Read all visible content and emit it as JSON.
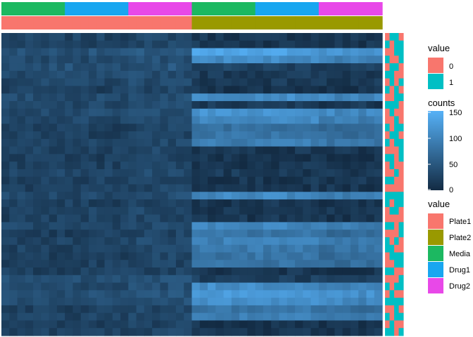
{
  "chart_data": {
    "type": "heatmap",
    "n_rows": 40,
    "n_cols": 48,
    "column_annotations": {
      "treatment": [
        "Media",
        "Media",
        "Media",
        "Media",
        "Media",
        "Media",
        "Media",
        "Media",
        "Drug1",
        "Drug1",
        "Drug1",
        "Drug1",
        "Drug1",
        "Drug1",
        "Drug1",
        "Drug1",
        "Drug2",
        "Drug2",
        "Drug2",
        "Drug2",
        "Drug2",
        "Drug2",
        "Drug2",
        "Drug2",
        "Media",
        "Media",
        "Media",
        "Media",
        "Media",
        "Media",
        "Media",
        "Media",
        "Drug1",
        "Drug1",
        "Drug1",
        "Drug1",
        "Drug1",
        "Drug1",
        "Drug1",
        "Drug1",
        "Drug2",
        "Drug2",
        "Drug2",
        "Drug2",
        "Drug2",
        "Drug2",
        "Drug2",
        "Drug2"
      ],
      "plate": [
        "Plate1",
        "Plate1",
        "Plate1",
        "Plate1",
        "Plate1",
        "Plate1",
        "Plate1",
        "Plate1",
        "Plate1",
        "Plate1",
        "Plate1",
        "Plate1",
        "Plate1",
        "Plate1",
        "Plate1",
        "Plate1",
        "Plate1",
        "Plate1",
        "Plate1",
        "Plate1",
        "Plate1",
        "Plate1",
        "Plate1",
        "Plate1",
        "Plate2",
        "Plate2",
        "Plate2",
        "Plate2",
        "Plate2",
        "Plate2",
        "Plate2",
        "Plate2",
        "Plate2",
        "Plate2",
        "Plate2",
        "Plate2",
        "Plate2",
        "Plate2",
        "Plate2",
        "Plate2",
        "Plate2",
        "Plate2",
        "Plate2",
        "Plate2",
        "Plate2",
        "Plate2",
        "Plate2",
        "Plate2"
      ]
    },
    "row_levels": [
      20,
      20,
      62,
      38,
      58,
      35,
      30,
      8,
      42,
      28,
      45,
      35,
      10,
      15,
      22,
      18,
      8,
      12,
      25,
      15,
      10,
      35,
      10,
      22,
      15,
      30,
      10,
      25,
      18,
      12,
      10,
      12,
      48,
      40,
      55,
      42,
      15,
      22,
      10,
      18
    ],
    "plate2_rows": [
      2,
      3,
      8,
      10,
      11,
      12,
      13,
      14,
      21,
      25,
      26,
      27,
      28,
      29,
      30,
      33,
      34,
      35,
      36,
      37
    ],
    "row_annotation_cells": [
      [
        0,
        1,
        1,
        0
      ],
      [
        1,
        0,
        1,
        1
      ],
      [
        0,
        0,
        1,
        1
      ],
      [
        1,
        0,
        0,
        1
      ],
      [
        0,
        1,
        1,
        0
      ],
      [
        1,
        1,
        0,
        0
      ],
      [
        0,
        1,
        0,
        1
      ],
      [
        1,
        0,
        1,
        0
      ],
      [
        0,
        0,
        1,
        1
      ],
      [
        1,
        1,
        1,
        0
      ],
      [
        0,
        1,
        0,
        0
      ],
      [
        0,
        0,
        1,
        0
      ],
      [
        1,
        0,
        1,
        1
      ],
      [
        0,
        1,
        1,
        0
      ],
      [
        1,
        0,
        1,
        1
      ],
      [
        0,
        0,
        0,
        1
      ],
      [
        1,
        1,
        0,
        1
      ],
      [
        0,
        1,
        0,
        0
      ],
      [
        0,
        0,
        1,
        0
      ],
      [
        1,
        1,
        0,
        0
      ],
      [
        0,
        0,
        0,
        0
      ],
      [
        1,
        1,
        1,
        1
      ],
      [
        1,
        0,
        1,
        1
      ],
      [
        0,
        1,
        1,
        0
      ],
      [
        0,
        0,
        0,
        0
      ],
      [
        1,
        1,
        0,
        1
      ],
      [
        0,
        0,
        0,
        1
      ],
      [
        1,
        0,
        1,
        0
      ],
      [
        1,
        1,
        0,
        0
      ],
      [
        0,
        1,
        1,
        1
      ],
      [
        0,
        0,
        1,
        1
      ],
      [
        1,
        1,
        0,
        0
      ],
      [
        0,
        0,
        0,
        1
      ],
      [
        1,
        0,
        1,
        1
      ],
      [
        0,
        1,
        0,
        0
      ],
      [
        1,
        1,
        1,
        1
      ],
      [
        0,
        0,
        1,
        0
      ],
      [
        1,
        0,
        1,
        1
      ],
      [
        0,
        1,
        0,
        0
      ],
      [
        1,
        1,
        0,
        1
      ]
    ],
    "color_scale": {
      "min": 0,
      "max": 150,
      "low": "#132B43",
      "high": "#56B1F7",
      "ticks": [
        0,
        50,
        100,
        150
      ]
    },
    "seed": 7
  },
  "legends": {
    "value_binary": {
      "title": "value",
      "items": [
        {
          "label": "0",
          "color": "#F8766D"
        },
        {
          "label": "1",
          "color": "#00BFC4"
        }
      ]
    },
    "counts": {
      "title": "counts",
      "ticks": [
        "150",
        "100",
        "50",
        "0"
      ]
    },
    "value_groups": {
      "title": "value",
      "items": [
        {
          "label": "Plate1",
          "color": "#F8766D"
        },
        {
          "label": "Plate2",
          "color": "#999900"
        },
        {
          "label": "Media",
          "color": "#1CB861"
        },
        {
          "label": "Drug1",
          "color": "#18A6F0"
        },
        {
          "label": "Drug2",
          "color": "#E848E8"
        }
      ]
    }
  }
}
